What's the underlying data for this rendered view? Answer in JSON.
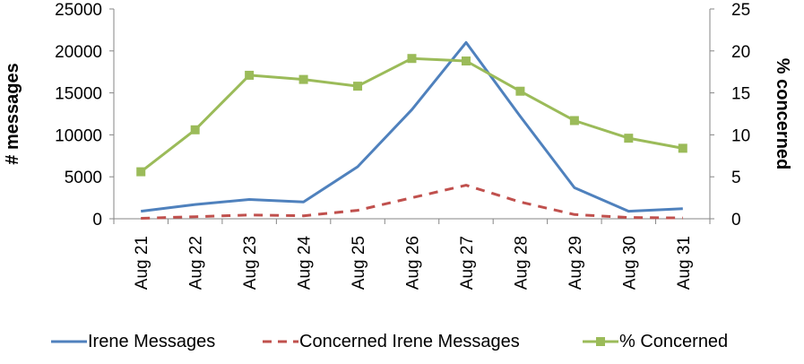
{
  "chart_data": {
    "type": "line",
    "categories": [
      "Aug 21",
      "Aug 22",
      "Aug 23",
      "Aug 24",
      "Aug 25",
      "Aug 26",
      "Aug 27",
      "Aug 28",
      "Aug 29",
      "Aug 30",
      "Aug 31"
    ],
    "left_axis": {
      "label": "# messages",
      "ylim": [
        0,
        25000
      ],
      "ticks": [
        "0",
        "5000",
        "10000",
        "15000",
        "20000",
        "25000"
      ]
    },
    "right_axis": {
      "label": "% concerned",
      "ylim": [
        0,
        25
      ],
      "ticks": [
        "0",
        "5",
        "10",
        "15",
        "20",
        "25"
      ]
    },
    "grid": false,
    "legend_position": "bottom",
    "series": [
      {
        "name": "Irene Messages",
        "axis": "left",
        "color": "#4f81bd",
        "style": "solid",
        "values": [
          900,
          1700,
          2300,
          2000,
          6200,
          13000,
          21000,
          12200,
          3700,
          900,
          1200
        ]
      },
      {
        "name": "Concerned Irene Messages",
        "axis": "left",
        "color": "#c0504d",
        "style": "dashed",
        "values": [
          50,
          250,
          450,
          350,
          1000,
          2500,
          4000,
          2000,
          500,
          150,
          100
        ]
      },
      {
        "name": "% Concerned",
        "axis": "right",
        "color": "#9bbb59",
        "style": "solid-markers",
        "values": [
          5.6,
          10.6,
          17.1,
          16.6,
          15.8,
          19.1,
          18.8,
          15.2,
          11.7,
          9.6,
          8.4
        ]
      }
    ]
  }
}
